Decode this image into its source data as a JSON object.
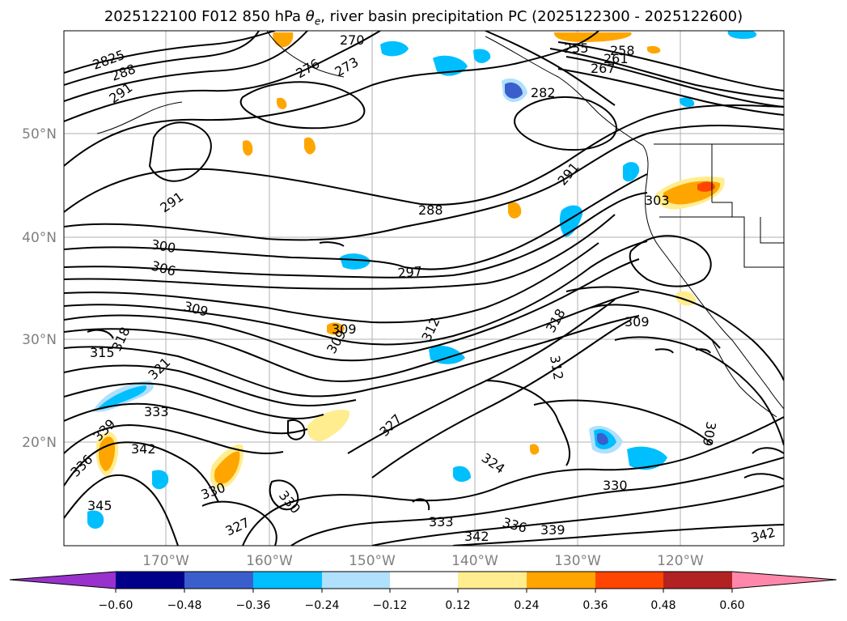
{
  "title_prefix": "2025122100 F012 850 hPa ",
  "title_symbol": "θ",
  "title_subscript": "e",
  "title_suffix": ", river basin precipitation PC (2025122300 - 2025122600)",
  "map": {
    "lat_labels": [
      "50°N",
      "40°N",
      "30°N",
      "20°N"
    ],
    "lon_labels": [
      "170°W",
      "160°W",
      "150°W",
      "140°W",
      "130°W",
      "120°W"
    ],
    "contour_labels": [
      "2825",
      "288",
      "291",
      "276",
      "273",
      "270",
      "255",
      "258",
      "267",
      "261",
      "282",
      "291",
      "291",
      "288",
      "303",
      "300",
      "306",
      "297",
      "309",
      "318",
      "315",
      "309",
      "309",
      "312",
      "318",
      "309",
      "312",
      "321",
      "333",
      "339",
      "342",
      "336",
      "327",
      "324",
      "330",
      "345",
      "330",
      "330",
      "327",
      "333",
      "336",
      "339",
      "342",
      "342",
      "309"
    ],
    "colors": {
      "contour": "#000000",
      "coast": "#000000",
      "grid": "#b0b0b0",
      "neg_weak": "#b0e0fb",
      "neg_mid": "#00bfff",
      "neg_strong": "#3a5fcd",
      "pos_weak": "#ffed8f",
      "pos_mid": "#ffa500",
      "pos_strong": "#ff4500"
    }
  },
  "colorbar": {
    "ticks": [
      "−0.60",
      "−0.48",
      "−0.36",
      "−0.24",
      "−0.12",
      "0.12",
      "0.24",
      "0.36",
      "0.48",
      "0.60"
    ],
    "colors": [
      "#9932cc",
      "#00008b",
      "#3a5fcd",
      "#00bfff",
      "#b0e0fb",
      "#ffffff",
      "#ffed8f",
      "#ffa500",
      "#ff4500",
      "#b22222",
      "#ff88aa"
    ]
  }
}
